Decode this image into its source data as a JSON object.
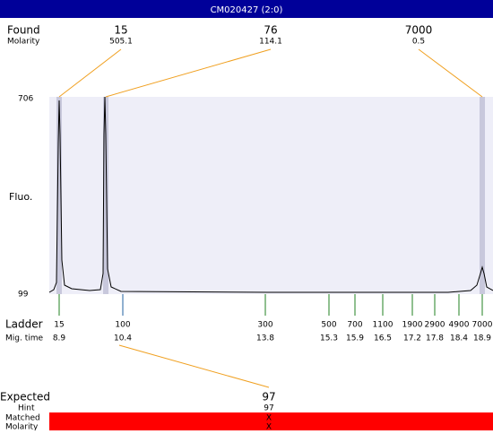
{
  "title": "CM020427 (2:0)",
  "found": {
    "label": "Found",
    "molarity_label": "Molarity",
    "peaks": [
      {
        "size": "15",
        "molarity": "505.1"
      },
      {
        "size": "76",
        "molarity": "114.1"
      },
      {
        "size": "7000",
        "molarity": "0.5"
      }
    ]
  },
  "plot": {
    "y_label": "Fluo.",
    "y_max": "706",
    "y_min": "99"
  },
  "ladder": {
    "label": "Ladder",
    "time_label": "Mig. time",
    "sizes": [
      "15",
      "100",
      "300",
      "500",
      "700",
      "1100",
      "1900",
      "2900",
      "4900",
      "7000"
    ],
    "times": [
      "8.9",
      "10.4",
      "13.8",
      "15.3",
      "15.9",
      "16.5",
      "17.2",
      "17.8",
      "18.4",
      "18.9"
    ]
  },
  "expected": {
    "label": "Expected",
    "value": "97",
    "hint_label": "Hint",
    "hint": "97",
    "matched_label": "Matched",
    "matched": "X",
    "molarity_label": "Molarity",
    "molarity": "X"
  }
}
